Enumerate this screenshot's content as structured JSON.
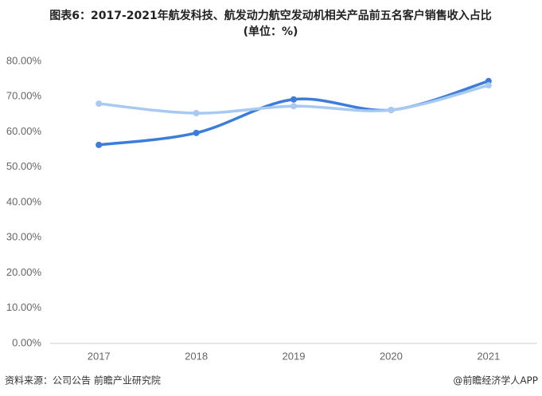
{
  "chart_data": {
    "type": "line",
    "title": "图表6：2017-2021年航发科技、航发动力航空发动机相关产品前五名客户销售收入占比",
    "subtitle": "(单位：%)",
    "categories": [
      "2017",
      "2018",
      "2019",
      "2020",
      "2021"
    ],
    "series": [
      {
        "color": "#3b7dd8",
        "values": [
          56.3,
          59.7,
          69.2,
          66.2,
          74.4
        ]
      },
      {
        "color": "#a7c9f2",
        "values": [
          68.0,
          65.3,
          67.3,
          66.2,
          73.2
        ]
      }
    ],
    "ylim": [
      0,
      80
    ],
    "yticks": [
      {
        "value": 0,
        "label": "0.00%"
      },
      {
        "value": 10,
        "label": "10.00%"
      },
      {
        "value": 20,
        "label": "20.00%"
      },
      {
        "value": 30,
        "label": "30.00%"
      },
      {
        "value": 40,
        "label": "40.00%"
      },
      {
        "value": 50,
        "label": "50.00%"
      },
      {
        "value": 60,
        "label": "60.00%"
      },
      {
        "value": 70,
        "label": "70.00%"
      },
      {
        "value": 80,
        "label": "80.00%"
      }
    ],
    "grid": false,
    "source": "资料来源：公司公告 前瞻产业研究院",
    "credit": "@前瞻经济学人APP"
  }
}
